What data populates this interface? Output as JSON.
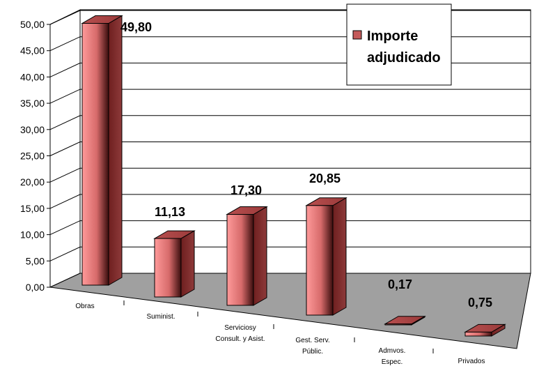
{
  "chart_data": {
    "type": "bar",
    "categories": [
      [
        "Obras"
      ],
      [
        "Suminist."
      ],
      [
        "Serviciosy",
        "Consult. y Asist."
      ],
      [
        "Gest. Serv.",
        "Públic."
      ],
      [
        "Admvos.",
        "Espec."
      ],
      [
        "Privados"
      ]
    ],
    "series": [
      {
        "name": "Importe adjudicado",
        "values": [
          49.8,
          11.13,
          17.3,
          20.85,
          0.17,
          0.75
        ]
      }
    ],
    "value_labels": [
      "49,80",
      "11,13",
      "17,30",
      "20,85",
      "0,17",
      "0,75"
    ],
    "y_ticks": [
      "0,00",
      "5,00",
      "10,00",
      "15,00",
      "20,00",
      "25,00",
      "30,00",
      "35,00",
      "40,00",
      "45,00",
      "50,00"
    ],
    "ylim": [
      0,
      50
    ],
    "grid": true,
    "legend_position": "top-right",
    "style": "3d-bar",
    "colors": {
      "bar_light": "#ff9a9a",
      "bar_mid": "#d66a6a",
      "bar_dark": "#3a0d0d",
      "floor": "#a0a0a0"
    }
  }
}
